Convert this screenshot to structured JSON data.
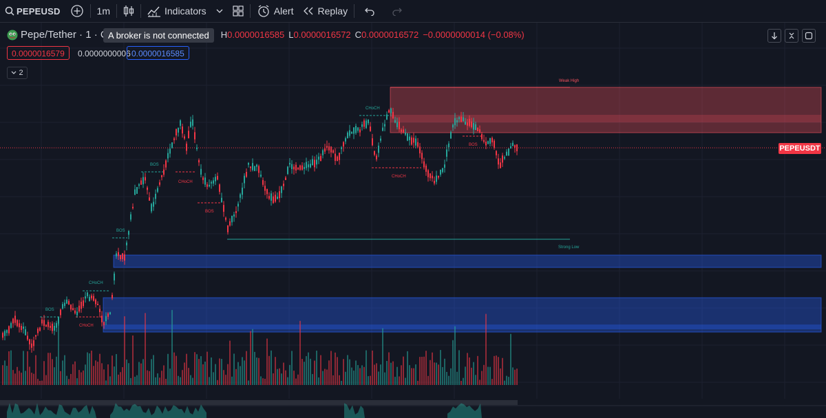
{
  "toolbar": {
    "symbol": "PEPEUSD",
    "interval": "1m",
    "indicators_label": "Indicators",
    "alert_label": "Alert",
    "replay_label": "Replay"
  },
  "legend": {
    "title": "Pepe/Tether · 1 · C",
    "h_label": "H",
    "h_value": "0.0000016585",
    "l_label": "L",
    "l_value": "0.0000016572",
    "c_label": "C",
    "c_value": "0.0000016572",
    "change": "−0.0000000014 (−0.08%)"
  },
  "broker_tooltip": "A broker is not connected",
  "quote": {
    "bid": "0.0000016579",
    "spread": "0.0000000006",
    "ask": "0.0000016585"
  },
  "collapse_count": "2",
  "price_tag": "PEPEUSDT",
  "annotations": {
    "weak_high": "Weak High",
    "strong_low": "Strong Low",
    "bos": "BOS",
    "choch": "CHoCH"
  },
  "colors": {
    "background": "#131722",
    "up": "#26a69a",
    "down": "#f23645",
    "supply_zone": "#f7525f",
    "demand_zone": "#2962ff",
    "accent_blue": "#2962ff"
  },
  "icons": [
    "search-icon",
    "add-symbol-icon",
    "candles-icon",
    "indicators-icon",
    "chevron-down-icon",
    "layout-grid-icon",
    "alert-clock-icon",
    "replay-icon",
    "undo-icon",
    "redo-icon",
    "arrow-down-icon",
    "collapse-icon",
    "fullscreen-icon"
  ]
}
